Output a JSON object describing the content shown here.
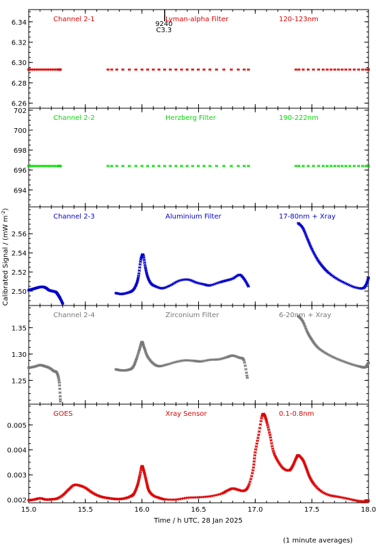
{
  "chart_data": {
    "type": "scatter",
    "xlabel": "Time / h UTC, 28 Jan 2025",
    "ylabel": "Calibrated Signal / (mW m",
    "ylabel_sup": "-2",
    "ylabel_end": ")",
    "footnote": "(1 minute averages)",
    "xlim": [
      15.0,
      18.0
    ],
    "xticks": [
      15.0,
      15.5,
      16.0,
      16.5,
      17.0,
      17.5,
      18.0
    ],
    "xtick_labels": [
      "15.0",
      "15.5",
      "16.0",
      "16.5",
      "17.0",
      "17.5",
      "18.0"
    ],
    "flare_marker": {
      "x": 16.2,
      "line1": "9240",
      "line2": "C3.3"
    },
    "panels": [
      {
        "channel": "Channel 2-1",
        "filter": "Lyman-alpha Filter",
        "band": "120-123nm",
        "color": "#dd0000",
        "ylim": [
          6.255,
          6.352
        ],
        "yticks": [
          6.26,
          6.28,
          6.3,
          6.32,
          6.34
        ],
        "ytick_labels": [
          "6.26",
          "6.28",
          "6.30",
          "6.32",
          "6.34"
        ],
        "segments": [
          {
            "x": [
              15.0,
              15.1,
              15.2,
              15.28
            ],
            "y": [
              6.293,
              6.293,
              6.293,
              6.293
            ]
          },
          {
            "x": [
              15.7,
              16.0,
              16.3,
              16.6,
              16.94
            ],
            "y": [
              6.293,
              6.293,
              6.293,
              6.293,
              6.293
            ]
          },
          {
            "x": [
              17.36,
              17.6,
              17.8,
              18.0
            ],
            "y": [
              6.293,
              6.293,
              6.293,
              6.293
            ]
          }
        ]
      },
      {
        "channel": "Channel 2-2",
        "filter": "Herzberg Filter",
        "band": "190-222nm",
        "color": "#00dd00",
        "ylim": [
          692.3,
          702.2
        ],
        "yticks": [
          694,
          696,
          698,
          700,
          702
        ],
        "ytick_labels": [
          "694",
          "696",
          "698",
          "700",
          "702"
        ],
        "segments": [
          {
            "x": [
              15.0,
              15.1,
              15.2,
              15.28
            ],
            "y": [
              696.4,
              696.4,
              696.4,
              696.4
            ]
          },
          {
            "x": [
              15.7,
              16.0,
              16.3,
              16.6,
              16.94
            ],
            "y": [
              696.4,
              696.4,
              696.4,
              696.4,
              696.4
            ]
          },
          {
            "x": [
              17.36,
              17.6,
              17.8,
              18.0
            ],
            "y": [
              696.4,
              696.4,
              696.4,
              696.4
            ]
          }
        ]
      },
      {
        "channel": "Channel 2-3",
        "filter": "Aluminium Filter",
        "band": "17-80nm + Xray",
        "color": "#0000cc",
        "ylim": [
          2.485,
          2.588
        ],
        "yticks": [
          2.5,
          2.52,
          2.54,
          2.56
        ],
        "ytick_labels": [
          "2.50",
          "2.52",
          "2.54",
          "2.56"
        ],
        "segments": [
          {
            "x": [
              15.0,
              15.03,
              15.06,
              15.09,
              15.12,
              15.15,
              15.18,
              15.21,
              15.24,
              15.26,
              15.28,
              15.3
            ],
            "y": [
              2.501,
              2.502,
              2.503,
              2.504,
              2.5045,
              2.5035,
              2.501,
              2.5,
              2.499,
              2.496,
              2.492,
              2.487
            ]
          },
          {
            "x": [
              15.77,
              15.82,
              15.88,
              15.92,
              15.95,
              15.97,
              15.99,
              16.01,
              16.03,
              16.05,
              16.08,
              16.12,
              16.18,
              16.25,
              16.33,
              16.41,
              16.48,
              16.55,
              16.6,
              16.68,
              16.74,
              16.8,
              16.86,
              16.9,
              16.94
            ],
            "y": [
              2.498,
              2.497,
              2.4985,
              2.501,
              2.507,
              2.516,
              2.533,
              2.538,
              2.525,
              2.515,
              2.508,
              2.505,
              2.503,
              2.506,
              2.511,
              2.512,
              2.509,
              2.507,
              2.506,
              2.509,
              2.511,
              2.513,
              2.517,
              2.513,
              2.505
            ]
          },
          {
            "x": [
              17.38,
              17.42,
              17.46,
              17.5,
              17.55,
              17.6,
              17.65,
              17.72,
              17.8,
              17.88,
              17.95,
              17.98,
              18.0
            ],
            "y": [
              2.571,
              2.566,
              2.555,
              2.544,
              2.533,
              2.525,
              2.519,
              2.513,
              2.508,
              2.504,
              2.503,
              2.507,
              2.514
            ]
          }
        ]
      },
      {
        "channel": "Channel 2-4",
        "filter": "Zirconium Filter",
        "band": "6-20nm + Xray",
        "color": "#777777",
        "ylim": [
          1.205,
          1.392
        ],
        "yticks": [
          1.25,
          1.3,
          1.35
        ],
        "ytick_labels": [
          "1.25",
          "1.30",
          "1.35"
        ],
        "segments": [
          {
            "x": [
              15.0,
              15.05,
              15.1,
              15.14,
              15.18,
              15.22,
              15.25,
              15.27,
              15.28
            ],
            "y": [
              1.274,
              1.276,
              1.279,
              1.277,
              1.274,
              1.268,
              1.264,
              1.246,
              1.21
            ]
          },
          {
            "x": [
              15.77,
              15.82,
              15.88,
              15.92,
              15.95,
              15.98,
              16.0,
              16.02,
              16.05,
              16.1,
              16.15,
              16.22,
              16.3,
              16.38,
              16.46,
              16.52,
              16.6,
              16.68,
              16.75,
              16.8,
              16.86,
              16.9,
              16.93
            ],
            "y": [
              1.271,
              1.269,
              1.27,
              1.275,
              1.29,
              1.31,
              1.323,
              1.312,
              1.295,
              1.282,
              1.277,
              1.28,
              1.285,
              1.288,
              1.287,
              1.286,
              1.289,
              1.29,
              1.294,
              1.297,
              1.293,
              1.288,
              1.255
            ]
          },
          {
            "x": [
              17.38,
              17.42,
              17.46,
              17.5,
              17.55,
              17.62,
              17.7,
              17.78,
              17.86,
              17.93,
              17.97,
              18.0
            ],
            "y": [
              1.372,
              1.362,
              1.342,
              1.327,
              1.313,
              1.302,
              1.293,
              1.286,
              1.28,
              1.276,
              1.275,
              1.283
            ]
          }
        ]
      },
      {
        "channel": "GOES",
        "filter": "Xray Sensor",
        "band": "0.1-0.8nm",
        "color": "#dd0000",
        "ylim": [
          0.00188,
          0.00583
        ],
        "yticks": [
          0.002,
          0.003,
          0.004,
          0.005
        ],
        "ytick_labels": [
          "0.002",
          "0.003",
          "0.004",
          "0.005"
        ],
        "segments": [
          {
            "x": [
              15.0,
              15.05,
              15.1,
              15.15,
              15.2,
              15.25,
              15.3,
              15.35,
              15.4,
              15.45,
              15.5,
              15.55,
              15.6,
              15.65,
              15.7,
              15.75,
              15.8,
              15.85,
              15.9,
              15.93,
              15.96,
              15.98,
              16.0,
              16.02,
              16.04,
              16.06,
              16.1,
              16.15,
              16.2,
              16.3,
              16.4,
              16.5,
              16.6,
              16.7,
              16.75,
              16.8,
              16.85,
              16.9,
              16.94,
              16.98,
              17.0,
              17.03,
              17.06,
              17.08,
              17.1,
              17.13,
              17.16,
              17.2,
              17.25,
              17.3,
              17.33,
              17.36,
              17.38,
              17.42,
              17.45,
              17.48,
              17.52,
              17.58,
              17.65,
              17.72,
              17.8,
              17.88,
              17.95,
              18.0
            ],
            "y": [
              0.00198,
              0.00201,
              0.00206,
              0.00201,
              0.00202,
              0.00205,
              0.00218,
              0.0024,
              0.00259,
              0.00257,
              0.00248,
              0.00232,
              0.00219,
              0.00211,
              0.00207,
              0.00204,
              0.00203,
              0.00206,
              0.00214,
              0.00225,
              0.00258,
              0.00295,
              0.00335,
              0.0031,
              0.00272,
              0.00238,
              0.00217,
              0.00208,
              0.00202,
              0.00201,
              0.00208,
              0.0021,
              0.00214,
              0.00224,
              0.00236,
              0.00245,
              0.0024,
              0.00236,
              0.00255,
              0.00318,
              0.0039,
              0.0046,
              0.00535,
              0.0054,
              0.00515,
              0.0046,
              0.00395,
              0.00355,
              0.00325,
              0.00318,
              0.00335,
              0.00365,
              0.00378,
              0.0036,
              0.00328,
              0.00292,
              0.00262,
              0.00235,
              0.00219,
              0.00213,
              0.00206,
              0.00198,
              0.00193,
              0.00196
            ]
          }
        ]
      }
    ]
  }
}
